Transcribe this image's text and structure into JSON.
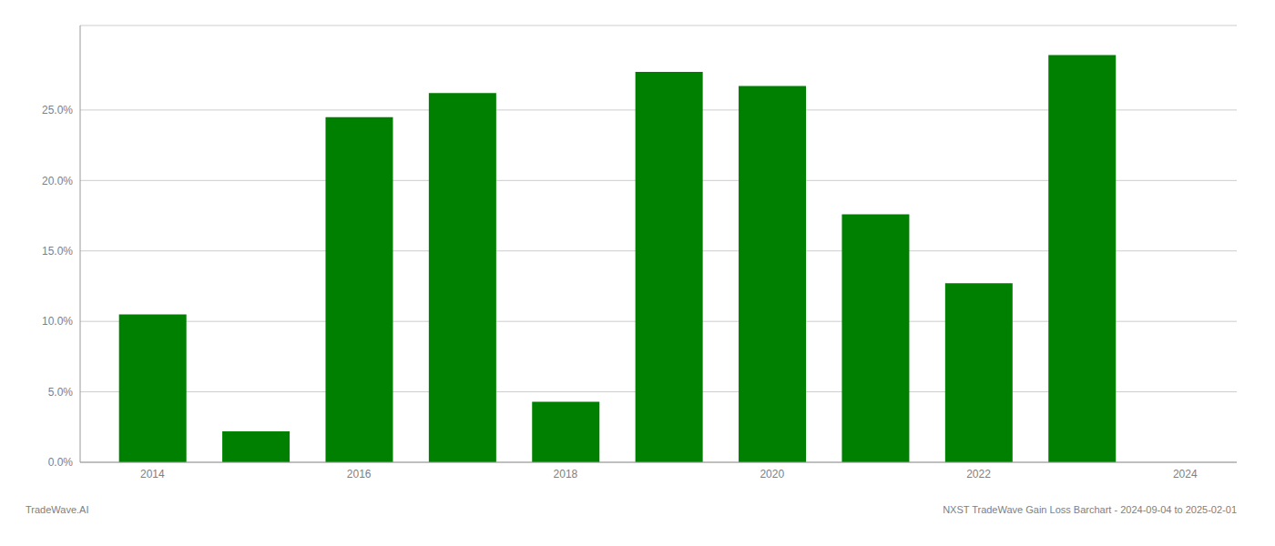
{
  "chart_data": {
    "type": "bar",
    "x": [
      2014,
      2015,
      2016,
      2017,
      2018,
      2019,
      2020,
      2021,
      2022,
      2023
    ],
    "values": [
      0.105,
      0.022,
      0.245,
      0.262,
      0.043,
      0.277,
      0.267,
      0.176,
      0.127,
      0.289
    ],
    "color": "#008000",
    "xlim": [
      2013.3,
      2024.5
    ],
    "xticks": [
      2014,
      2016,
      2018,
      2020,
      2022,
      2024
    ],
    "ylim": [
      0.0,
      0.31
    ],
    "yticks": [
      {
        "value": 0.0,
        "label": "0.0%"
      },
      {
        "value": 0.05,
        "label": "5.0%"
      },
      {
        "value": 0.1,
        "label": "10.0%"
      },
      {
        "value": 0.15,
        "label": "15.0%"
      },
      {
        "value": 0.2,
        "label": "20.0%"
      },
      {
        "value": 0.25,
        "label": "25.0%"
      }
    ],
    "grid": true,
    "annotations": [
      "TradeWave.AI",
      "NXST TradeWave Gain Loss Barchart - 2024-09-04 to 2025-02-01"
    ]
  }
}
